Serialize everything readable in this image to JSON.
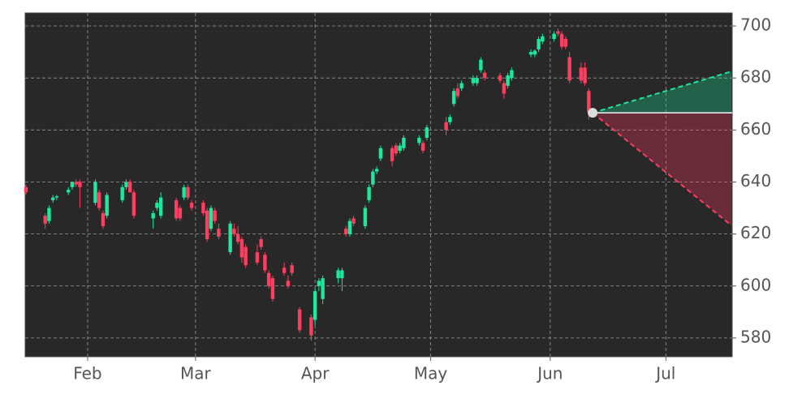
{
  "chart_data": {
    "type": "candlestick",
    "x": [
      16,
      21,
      22,
      23,
      24,
      27,
      28,
      29,
      30,
      34,
      35,
      36,
      37,
      41,
      42,
      43,
      44,
      49,
      50,
      51,
      55,
      56,
      57,
      58,
      59,
      62,
      63,
      64,
      65,
      66,
      69,
      70,
      71,
      72,
      73,
      76,
      77,
      78,
      79,
      80,
      83,
      84,
      85,
      87,
      90,
      91,
      92,
      93,
      97,
      98,
      99,
      100,
      101,
      104,
      105,
      106,
      107,
      108,
      111,
      112,
      113,
      114,
      118,
      119,
      120,
      125,
      126,
      127,
      128,
      129,
      132,
      133,
      134,
      135,
      139,
      140,
      141,
      142,
      147,
      148,
      149,
      150,
      153,
      154,
      155,
      156,
      157,
      160,
      161,
      162
    ],
    "open": [
      638,
      627,
      625,
      633,
      634,
      636,
      638,
      640,
      640,
      632,
      636,
      628,
      627,
      633,
      638,
      640,
      636,
      626,
      630,
      627,
      633,
      630,
      634,
      638,
      632,
      632,
      629,
      622,
      629,
      622,
      613,
      622,
      620,
      618,
      615,
      613,
      618,
      612,
      605,
      603,
      607,
      602,
      608,
      591,
      588,
      587,
      600,
      595,
      603,
      603,
      622,
      620,
      626,
      623,
      633,
      639,
      644,
      649,
      653,
      654,
      652,
      653,
      655,
      655,
      657,
      663,
      663,
      670,
      676,
      676,
      678,
      678,
      683,
      682,
      681,
      678,
      677,
      680,
      689,
      689,
      691,
      694,
      695,
      698,
      697,
      695,
      688,
      684,
      684,
      675
    ],
    "high": [
      639,
      628,
      631,
      635,
      635,
      638,
      640,
      641,
      641,
      641,
      637,
      629,
      636,
      639,
      641,
      641,
      637,
      629,
      633,
      636,
      634,
      631,
      639,
      639,
      633,
      633,
      630,
      631,
      630,
      624,
      625,
      624,
      623,
      619,
      616,
      616,
      619,
      613,
      606,
      604,
      609,
      604,
      609,
      592,
      589,
      599,
      603,
      604,
      607,
      607,
      623,
      626,
      627,
      631,
      639,
      645,
      646,
      654,
      654,
      655,
      655,
      658,
      658,
      656,
      662,
      665,
      666,
      676,
      678,
      679,
      681,
      681,
      688,
      683,
      682,
      679,
      682,
      684,
      691,
      691,
      696,
      697,
      698,
      699,
      698,
      696,
      690,
      686,
      686,
      676
    ],
    "low": [
      635,
      622,
      624,
      632,
      633,
      635,
      637,
      638,
      630,
      631,
      629,
      622,
      626,
      632,
      637,
      636,
      626,
      622,
      629,
      626,
      625,
      625,
      633,
      633,
      629,
      627,
      617,
      621,
      624,
      618,
      612,
      619,
      616,
      609,
      607,
      608,
      614,
      605,
      599,
      594,
      604,
      599,
      604,
      582,
      579,
      585,
      598,
      593,
      601,
      598,
      619,
      619,
      623,
      622,
      632,
      638,
      643,
      648,
      646,
      650,
      651,
      652,
      654,
      651,
      656,
      658,
      662,
      669,
      672,
      675,
      677,
      677,
      682,
      679,
      678,
      672,
      676,
      679,
      688,
      688,
      690,
      693,
      694,
      696,
      691,
      691,
      678,
      678,
      677,
      664
    ],
    "close": [
      636,
      624,
      630,
      634,
      634.5,
      637,
      640,
      639,
      638,
      640,
      630,
      623,
      635,
      638,
      640,
      636,
      627,
      628,
      632,
      634,
      626,
      626,
      638,
      634,
      630,
      628,
      618,
      630,
      625,
      619,
      624,
      620,
      617,
      611,
      608,
      609,
      615,
      606,
      600,
      595,
      605,
      600,
      605,
      583,
      581,
      598,
      602,
      603,
      606,
      606,
      620,
      625,
      624,
      630,
      638,
      644,
      645,
      653,
      648,
      651,
      654,
      657,
      657,
      652,
      661,
      660,
      665,
      675,
      673,
      678,
      680,
      680,
      687,
      680,
      679,
      674,
      681,
      683,
      690,
      690.5,
      695,
      696,
      697,
      697,
      692,
      692,
      679,
      679,
      678,
      667
    ],
    "up_color": "#1de89b",
    "down_color": "#ff3d5f",
    "current": {
      "x": 163,
      "value": 666.6
    },
    "forecast_upper": {
      "x": [
        163,
        199
      ],
      "values": [
        666.6,
        682.5
      ],
      "color": "#1de89b"
    },
    "forecast_lower": {
      "x": [
        163,
        199
      ],
      "values": [
        666.6,
        623.3
      ],
      "color": "#ff3d5f"
    },
    "xlim": [
      15.8,
      199.2
    ],
    "ylim": [
      572.8,
      705
    ],
    "xticks": [
      {
        "value": 32,
        "label": "Feb"
      },
      {
        "value": 60,
        "label": "Mar"
      },
      {
        "value": 91,
        "label": "Apr"
      },
      {
        "value": 121,
        "label": "May"
      },
      {
        "value": 152,
        "label": "Jun"
      },
      {
        "value": 182,
        "label": "Jul"
      }
    ],
    "yticks": [
      580,
      600,
      620,
      640,
      660,
      680,
      700
    ],
    "grid": true
  }
}
